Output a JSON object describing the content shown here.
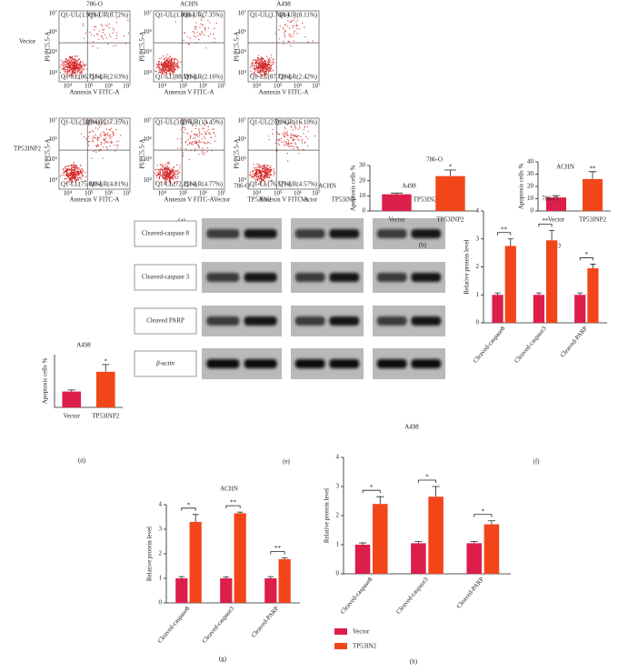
{
  "flow_cytometry": {
    "panel": "(a)",
    "columns": [
      "786-O",
      "ACHN",
      "A498"
    ],
    "rows": [
      "Vector",
      "TP53INP2"
    ],
    "x_label": "Annexin V FITC-A",
    "y_label": "PI/PC5.5-A",
    "tick_labels": [
      "10⁴",
      "10⁵",
      "10⁶",
      "10⁷"
    ],
    "quadrants": [
      [
        [
          "Q1-UL(1.91%)",
          "Q1-UR(8.72%)",
          "Q1-LL(86.75%)",
          "Q1-LR(2.63%)"
        ],
        [
          "Q1-UL(1.89%)",
          "Q1-UR(7.35%)",
          "Q1-LL(88.59%)",
          "Q1-LR(2.16%)"
        ],
        [
          "Q1-UL(1.74%)",
          "Q1-UR(8.11%)",
          "Q1-LL(87.73%)",
          "Q1-LR(2.42%)"
        ]
      ],
      [
        [
          "Q1-UL(3.01%)",
          "Q1-UR(17.35%)",
          "Q1-LL(75.04%)",
          "Q1-LR(4.81%)"
        ],
        [
          "Q1-UL(3.53%)",
          "Q1-UR(19.45%)",
          "Q1-LL(72.25%)",
          "Q1-LR(4.77%)"
        ],
        [
          "Q1-UL(2.76%)",
          "Q1-UR(16.10%)",
          "Q1-LL(76.57%)",
          "Q1-LR(4.57%)"
        ]
      ]
    ]
  },
  "western_blot": {
    "panel": "(e)",
    "cell_lines": [
      "786-O",
      "ACHN",
      "A498"
    ],
    "lanes": [
      "Vector",
      "TP53IN2"
    ],
    "proteins": [
      "Cleaved-caspase 8",
      "Cleaved-caspase 3",
      "Cleaved PARP",
      "β-actin"
    ]
  },
  "chart_data": [
    {
      "type": "bar",
      "panel": "(b)",
      "title": "786-O",
      "y_label": "Apoptosis cells %",
      "categories": [
        "Vector",
        "TP53INP2"
      ],
      "values": [
        11,
        23
      ],
      "errors": [
        0.8,
        4
      ],
      "colors": [
        "#dc1e4a",
        "#f2461a"
      ],
      "ylim": [
        0,
        30
      ],
      "yticks": [
        0,
        10,
        20,
        30
      ],
      "annotation": "*"
    },
    {
      "type": "bar",
      "panel": "(c)",
      "title": "ACHN",
      "y_label": "Apoptosis cells %",
      "categories": [
        "Vector",
        "TP53INP2"
      ],
      "values": [
        11,
        26
      ],
      "errors": [
        1.5,
        6
      ],
      "colors": [
        "#dc1e4a",
        "#f2461a"
      ],
      "ylim": [
        0,
        40
      ],
      "yticks": [
        0,
        10,
        20,
        30,
        40
      ],
      "annotation": "**"
    },
    {
      "type": "bar",
      "panel": "(d)",
      "title": "A498",
      "y_label": "Apoptosis cells %",
      "categories": [
        "Vector",
        "TP53INP2"
      ],
      "values": [
        12,
        27
      ],
      "errors": [
        1.2,
        5.5
      ],
      "colors": [
        "#dc1e4a",
        "#f2461a"
      ],
      "ylim": [
        0,
        40
      ],
      "annotation": "*"
    },
    {
      "type": "bar",
      "panel": "(f)",
      "title": "786-O",
      "y_label": "Relative protein level",
      "categories": [
        "Cleaved-caspase8",
        "Cleaved-caspase3",
        "Cleaved-PARP"
      ],
      "series": [
        {
          "color": "#dc1e4a",
          "values": [
            1,
            1,
            1
          ],
          "errors": [
            0.07,
            0.07,
            0.07
          ]
        },
        {
          "color": "#f2461a",
          "values": [
            2.75,
            2.95,
            1.95
          ],
          "errors": [
            0.25,
            0.35,
            0.15
          ]
        }
      ],
      "ylim": [
        0,
        4
      ],
      "yticks": [
        0,
        1,
        2,
        3,
        4
      ],
      "annotations": [
        "**",
        "**",
        "*"
      ]
    },
    {
      "type": "bar",
      "panel": "(g)",
      "title": "ACHN",
      "y_label": "Relative protein level",
      "categories": [
        "Cleaved-caspase8",
        "Cleaved-caspase3",
        "Cleaved-PARP"
      ],
      "series": [
        {
          "color": "#dc1e4a",
          "values": [
            1,
            1,
            1
          ],
          "errors": [
            0.07,
            0.06,
            0.07
          ]
        },
        {
          "color": "#f2461a",
          "values": [
            3.3,
            3.65,
            1.78
          ],
          "errors": [
            0.3,
            0.05,
            0.05
          ]
        }
      ],
      "ylim": [
        0,
        4
      ],
      "yticks": [
        0,
        1,
        2,
        3,
        4
      ],
      "annotations": [
        "*",
        "**",
        "**"
      ]
    },
    {
      "type": "bar",
      "panel": "(h)",
      "title": "A498",
      "y_label": "Relative protein level",
      "categories": [
        "Cleaved-caspase8",
        "Cleaved-caspase3",
        "Cleaved-PARP"
      ],
      "series": [
        {
          "name": "Vector",
          "color": "#dc1e4a",
          "values": [
            1,
            1.05,
            1.05
          ],
          "errors": [
            0.06,
            0.06,
            0.06
          ]
        },
        {
          "name": "TP53IN2",
          "color": "#f2461a",
          "values": [
            2.4,
            2.65,
            1.7
          ],
          "errors": [
            0.25,
            0.35,
            0.12
          ]
        }
      ],
      "ylim": [
        0,
        4
      ],
      "yticks": [
        0,
        1,
        2,
        3,
        4
      ],
      "annotations": [
        "*",
        "*",
        "*"
      ],
      "legend": "bottom-left"
    }
  ]
}
